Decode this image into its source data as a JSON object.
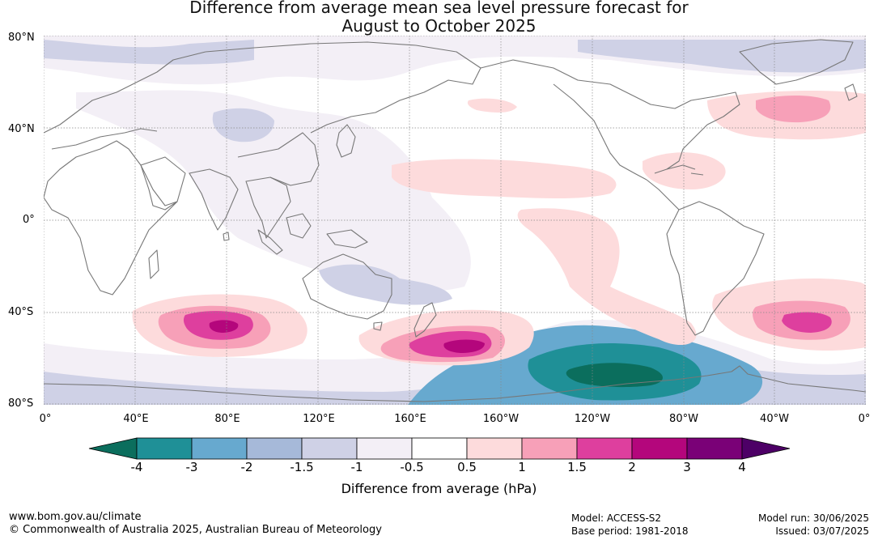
{
  "title": {
    "line1": "Difference from average mean sea level pressure forecast for",
    "line2": "August to October 2025"
  },
  "map": {
    "lat_labels": [
      "80°N",
      "40°N",
      "0°",
      "40°S",
      "80°S"
    ],
    "lon_labels": [
      "0°",
      "40°E",
      "80°E",
      "120°E",
      "160°E",
      "160°W",
      "120°W",
      "80°W",
      "40°W",
      "0°"
    ],
    "colors": {
      "land_outline": "#777777",
      "grid": "#888888"
    }
  },
  "colorbar": {
    "ticks": [
      "-4",
      "-3",
      "-2",
      "-1.5",
      "-1",
      "-0.5",
      "0.5",
      "1",
      "1.5",
      "2",
      "3",
      "4"
    ],
    "colors": [
      "#0b6e5d",
      "#1f9097",
      "#67a9cf",
      "#a6b9d9",
      "#cfd1e6",
      "#f3eff6",
      "#ffffff",
      "#fddbdc",
      "#f7a0b8",
      "#de3f9e",
      "#b4067c",
      "#7a0177",
      "#4d0066"
    ],
    "label": "Difference from average (hPa)"
  },
  "footer": {
    "website": "www.bom.gov.au/climate",
    "copyright": "© Commonwealth of Australia 2025, Australian Bureau of Meteorology",
    "model": "Model: ACCESS-S2",
    "base_period": "Base period: 1981-2018",
    "model_run": "Model run: 30/06/2025",
    "issued": "Issued: 03/07/2025"
  }
}
